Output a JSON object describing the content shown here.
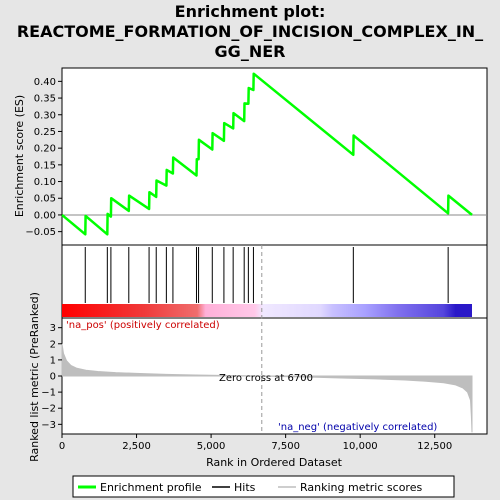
{
  "title_lines": [
    "Enrichment plot:",
    "REACTOME_FORMATION_OF_INCISION_COMPLEX_IN_",
    "GG_NER"
  ],
  "legend": {
    "enrichment": "Enrichment profile",
    "hits": "Hits",
    "ranking": "Ranking metric scores",
    "colors": {
      "enrichment": "#00ff00",
      "hits": "#000000",
      "ranking": "#bebebe"
    }
  },
  "chart_data": [
    {
      "type": "line",
      "name": "enrichment-profile",
      "ylabel": "Enrichment score (ES)",
      "xlim": [
        0,
        13800
      ],
      "ylim": [
        -0.09,
        0.44
      ],
      "yticks": [
        -0.05,
        0.0,
        0.05,
        0.1,
        0.15,
        0.2,
        0.25,
        0.3,
        0.35,
        0.4
      ],
      "ytick_labels": [
        "−0.05",
        "0.00",
        "0.05",
        "0.10",
        "0.15",
        "0.20",
        "0.25",
        "0.30",
        "0.35",
        "0.40"
      ],
      "line_color": "#00ff00",
      "x": [
        0,
        780,
        790,
        1520,
        1530,
        1640,
        1650,
        2240,
        2250,
        2920,
        2930,
        3160,
        3170,
        3500,
        3510,
        3720,
        3730,
        4510,
        4520,
        4580,
        4590,
        5040,
        5050,
        5430,
        5440,
        5740,
        5750,
        6110,
        6120,
        6250,
        6260,
        6420,
        6430,
        9770,
        9780,
        12950,
        12960,
        13750
      ],
      "y": [
        0.0,
        -0.058,
        -0.003,
        -0.058,
        0.003,
        -0.005,
        0.05,
        0.012,
        0.058,
        0.018,
        0.068,
        0.054,
        0.103,
        0.088,
        0.135,
        0.124,
        0.172,
        0.118,
        0.167,
        0.167,
        0.225,
        0.196,
        0.245,
        0.222,
        0.275,
        0.259,
        0.305,
        0.281,
        0.334,
        0.333,
        0.38,
        0.374,
        0.423,
        0.18,
        0.238,
        0.005,
        0.058,
        0.0
      ]
    },
    {
      "type": "hits",
      "name": "gene-hits",
      "positions": [
        780,
        1520,
        1640,
        2240,
        2920,
        3160,
        3500,
        3720,
        4510,
        4580,
        5040,
        5430,
        5740,
        6110,
        6250,
        6420,
        9770,
        12950
      ]
    },
    {
      "type": "area",
      "name": "ranking-metric",
      "xlabel": "Rank in Ordered Dataset",
      "ylabel": "Ranked list metric (PreRanked)",
      "xlim": [
        0,
        13800
      ],
      "ylim": [
        -3.6,
        3.6
      ],
      "xticks": [
        0,
        2500,
        5000,
        7500,
        10000,
        12500
      ],
      "xtick_labels": [
        "0",
        "2,500",
        "5,000",
        "7,500",
        "10,000",
        "12,500"
      ],
      "yticks": [
        -3,
        -2,
        -1,
        0,
        1,
        2,
        3
      ],
      "ytick_labels": [
        "−3",
        "−2",
        "−1",
        "0",
        "1",
        "2",
        "3"
      ],
      "fill_color": "#bebebe",
      "x": [
        0,
        50,
        150,
        300,
        500,
        800,
        1200,
        1800,
        2500,
        3500,
        4500,
        5500,
        6700,
        7500,
        8500,
        9500,
        10500,
        11500,
        12200,
        12800,
        13200,
        13450,
        13600,
        13700,
        13730,
        13750
      ],
      "y": [
        2.0,
        1.4,
        0.95,
        0.65,
        0.48,
        0.36,
        0.28,
        0.21,
        0.16,
        0.1,
        0.06,
        0.03,
        0.0,
        -0.04,
        -0.08,
        -0.13,
        -0.18,
        -0.25,
        -0.32,
        -0.42,
        -0.55,
        -0.75,
        -1.0,
        -1.5,
        -2.5,
        -3.5
      ],
      "zero_cross": 6700,
      "zero_cross_label": "Zero cross at 6700",
      "pos_label": "'na_pos' (positively correlated)",
      "neg_label": "'na_neg' (negatively correlated)",
      "pos_color": "#cc0000",
      "neg_color": "#0000aa"
    }
  ]
}
